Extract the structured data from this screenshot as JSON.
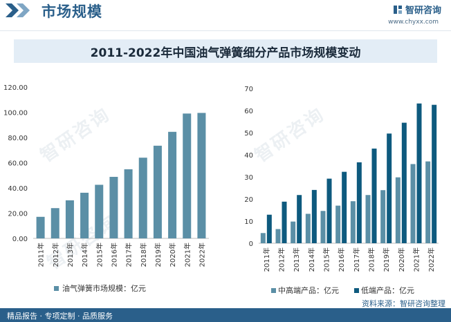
{
  "header": {
    "title": "市场规模",
    "logo_name": "智研咨询",
    "logo_url": "www.chyxx.com"
  },
  "watermarks": [
    "智研咨询",
    "智研咨询",
    "智研咨询"
  ],
  "footer": {
    "left": "精品报告 · 专项定制 · 品质服务",
    "right": "",
    "source": "资料来源：智研咨询整理"
  },
  "colors": {
    "brand": "#2a5f8a",
    "series_main": "#5b8fa6",
    "series_high": "#5b8fa6",
    "series_low": "#0e5a7e",
    "title_bg": "#e3edf6"
  },
  "chart_title": "2011-2022年中国油气弹簧细分产品市场规模变动",
  "chart_data": [
    {
      "type": "bar",
      "title": "",
      "categories": [
        "2011年",
        "2012年",
        "2013年",
        "2014年",
        "2015年",
        "2016年",
        "2017年",
        "2018年",
        "2019年",
        "2020年",
        "2021年",
        "2022年"
      ],
      "series": [
        {
          "name": "油气弹簧市场规模：亿元",
          "values": [
            17.1,
            24.0,
            30.2,
            36.2,
            42.5,
            48.8,
            54.8,
            64.0,
            73.5,
            84.5,
            99.0,
            99.5
          ]
        }
      ],
      "ylim": [
        0,
        120
      ],
      "yticks": [
        "0.00",
        "20.00",
        "40.00",
        "60.00",
        "80.00",
        "100.00",
        "120.00"
      ],
      "legend": "bottom-left",
      "grid": false
    },
    {
      "type": "bar",
      "title": "",
      "categories": [
        "2011年",
        "2012年",
        "2013年",
        "2014年",
        "2015年",
        "2016年",
        "2017年",
        "2018年",
        "2019年",
        "2020年",
        "2021年",
        "2022年"
      ],
      "series": [
        {
          "name": "中高端产品：亿元",
          "values": [
            4.6,
            6.4,
            9.8,
            13.3,
            14.6,
            17.0,
            19.0,
            21.8,
            24.0,
            29.8,
            35.8,
            37.0
          ]
        },
        {
          "name": "低端产品：亿元",
          "values": [
            12.9,
            18.8,
            21.8,
            24.1,
            29.2,
            32.3,
            36.6,
            42.8,
            49.6,
            54.5,
            63.2,
            62.6
          ]
        }
      ],
      "ylim": [
        0,
        70
      ],
      "yticks": [
        "0",
        "10",
        "20",
        "30",
        "40",
        "50",
        "60",
        "70"
      ],
      "legend": "bottom",
      "grid": false
    }
  ]
}
